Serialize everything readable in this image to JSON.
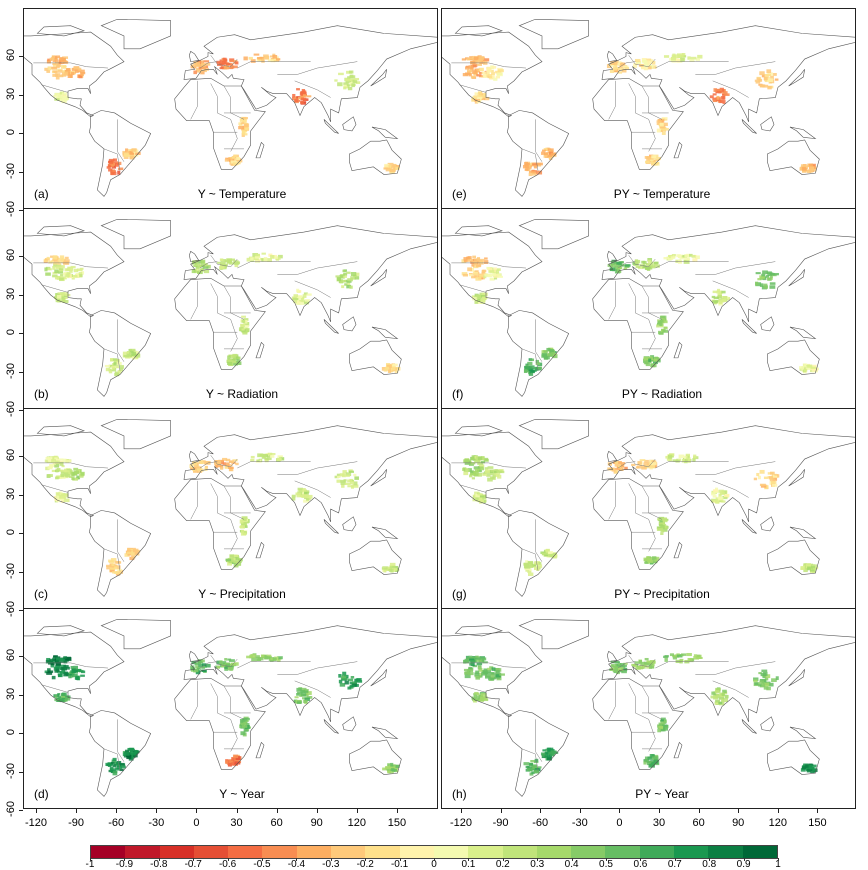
{
  "panels": [
    {
      "label": "(a)",
      "title": "Y ~ Temperature",
      "values": {
        "us_west": -0.2,
        "us_corn": -0.3,
        "canada": -0.3,
        "mexico": 0.1,
        "europe_west": -0.3,
        "europe_east": -0.5,
        "russia": -0.2,
        "china": 0.2,
        "india": -0.5,
        "argentina": -0.5,
        "brazil_south": -0.2,
        "east_africa": -0.2,
        "south_africa": -0.2,
        "australia": -0.2
      }
    },
    {
      "label": "(b)",
      "title": "Y ~ Radiation",
      "values": {
        "us_west": 0.2,
        "us_corn": 0.1,
        "canada": -0.2,
        "mexico": 0.2,
        "europe_west": 0.3,
        "europe_east": 0.2,
        "russia": 0.1,
        "china": 0.3,
        "india": 0.1,
        "argentina": 0.2,
        "brazil_south": 0.2,
        "east_africa": 0.2,
        "south_africa": 0.3,
        "australia": -0.2
      }
    },
    {
      "label": "(c)",
      "title": "Y ~ Precipitation",
      "values": {
        "us_west": 0.2,
        "us_corn": 0.3,
        "canada": 0.1,
        "mexico": 0.1,
        "europe_west": -0.2,
        "europe_east": -0.3,
        "russia": 0.2,
        "china": 0.2,
        "india": 0.2,
        "argentina": -0.2,
        "brazil_south": -0.2,
        "east_africa": 0.2,
        "south_africa": 0.3,
        "australia": 0.2
      }
    },
    {
      "label": "(d)",
      "title": "Y ~ Year",
      "values": {
        "us_west": 0.8,
        "us_corn": 0.7,
        "canada": 0.9,
        "mexico": 0.6,
        "europe_west": 0.6,
        "europe_east": 0.5,
        "russia": 0.4,
        "china": 0.7,
        "india": 0.5,
        "argentina": 0.8,
        "brazil_south": 0.8,
        "east_africa": 0.5,
        "south_africa": -0.5,
        "australia": 0.4
      }
    },
    {
      "label": "(e)",
      "title": "PY ~ Temperature",
      "values": {
        "us_west": -0.3,
        "us_corn": -0.1,
        "canada": -0.3,
        "mexico": -0.2,
        "europe_west": -0.2,
        "europe_east": -0.1,
        "russia": 0.1,
        "china": -0.2,
        "india": -0.5,
        "argentina": -0.3,
        "brazil_south": -0.3,
        "east_africa": -0.2,
        "south_africa": -0.2,
        "australia": -0.3
      }
    },
    {
      "label": "(f)",
      "title": "PY ~ Radiation",
      "values": {
        "us_west": -0.2,
        "us_corn": 0.1,
        "canada": -0.3,
        "mexico": 0.2,
        "europe_west": 0.5,
        "europe_east": 0.3,
        "russia": 0.1,
        "china": 0.5,
        "india": 0.2,
        "argentina": 0.6,
        "brazil_south": 0.5,
        "east_africa": 0.4,
        "south_africa": 0.5,
        "australia": 0.1
      }
    },
    {
      "label": "(g)",
      "title": "PY ~ Precipitation",
      "values": {
        "us_west": 0.3,
        "us_corn": 0.2,
        "canada": 0.3,
        "mexico": 0.2,
        "europe_west": -0.3,
        "europe_east": -0.2,
        "russia": 0.2,
        "china": -0.2,
        "india": 0.1,
        "argentina": 0.2,
        "brazil_south": 0.2,
        "east_africa": 0.3,
        "south_africa": 0.4,
        "australia": 0.2
      }
    },
    {
      "label": "(h)",
      "title": "PY ~ Year",
      "values": {
        "us_west": 0.5,
        "us_corn": 0.5,
        "canada": 0.6,
        "mexico": 0.4,
        "europe_west": 0.5,
        "europe_east": 0.4,
        "russia": 0.4,
        "china": 0.5,
        "india": 0.3,
        "argentina": 0.6,
        "brazil_south": 0.7,
        "east_africa": 0.5,
        "south_africa": 0.6,
        "australia": 0.8
      }
    }
  ],
  "y_ticks": [
    "60",
    "30",
    "0",
    "-30",
    "-60"
  ],
  "x_ticks": [
    "-120",
    "-90",
    "-60",
    "-30",
    "0",
    "30",
    "60",
    "90",
    "120",
    "150"
  ],
  "colorbar": {
    "labels": [
      "-1",
      "-0.9",
      "-0.8",
      "-0.7",
      "-0.6",
      "-0.5",
      "-0.4",
      "-0.3",
      "-0.2",
      "-0.1",
      "0",
      "0.1",
      "0.2",
      "0.3",
      "0.4",
      "0.5",
      "0.6",
      "0.7",
      "0.8",
      "0.9",
      "1"
    ],
    "colors": [
      "#a50026",
      "#c0182a",
      "#d73027",
      "#e54f35",
      "#f46d43",
      "#f88d52",
      "#fdae61",
      "#fec97a",
      "#fee08b",
      "#fff3ac",
      "#f4fab0",
      "#d9ef8b",
      "#c0e47a",
      "#a6d96a",
      "#86cb67",
      "#66bd63",
      "#3faa59",
      "#1a9850",
      "#0c7f43",
      "#006837"
    ]
  }
}
